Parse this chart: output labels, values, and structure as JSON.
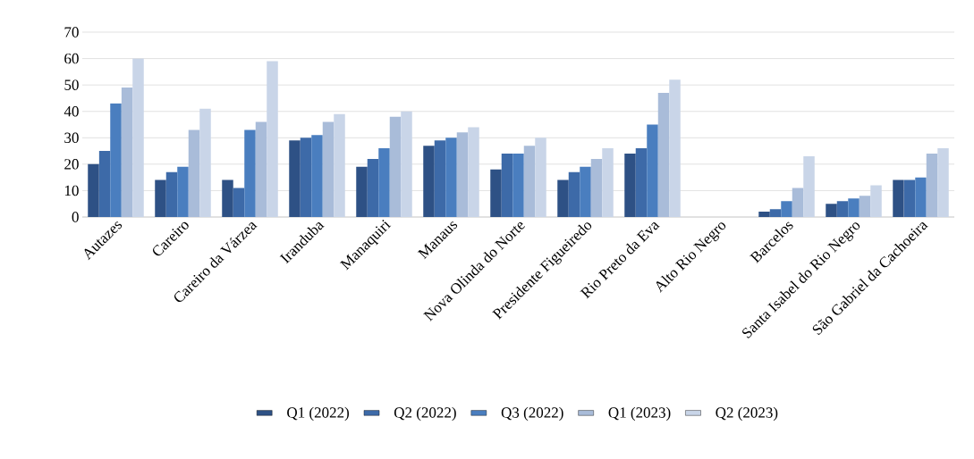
{
  "chart_data": {
    "type": "bar",
    "categories": [
      "Autazes",
      "Careiro",
      "Careiro da Várzea",
      "Iranduba",
      "Manaquiri",
      "Manaus",
      "Nova Olinda do Norte",
      "Presidente Figueiredo",
      "Rio Preto da Eva",
      "Alto Rio Negro",
      "Barcelos",
      "Santa Isabel do Rio Negro",
      "São Gabriel da Cachoeira"
    ],
    "series": [
      {
        "name": "Q1 (2022)",
        "color": "#2e5185",
        "values": [
          20,
          14,
          14,
          29,
          19,
          27,
          18,
          14,
          24,
          null,
          2,
          5,
          14
        ]
      },
      {
        "name": "Q2 (2022)",
        "color": "#3d6aa8",
        "values": [
          25,
          17,
          11,
          30,
          22,
          29,
          24,
          17,
          26,
          null,
          3,
          6,
          14
        ]
      },
      {
        "name": "Q3 (2022)",
        "color": "#4a7ebf",
        "values": [
          43,
          19,
          33,
          31,
          26,
          30,
          24,
          19,
          35,
          null,
          6,
          7,
          15
        ]
      },
      {
        "name": "Q1 (2023)",
        "color": "#a9bcd9",
        "values": [
          49,
          33,
          36,
          36,
          38,
          32,
          27,
          22,
          47,
          null,
          11,
          8,
          24
        ]
      },
      {
        "name": "Q2 (2023)",
        "color": "#c9d5e8",
        "values": [
          60,
          41,
          59,
          39,
          40,
          34,
          30,
          26,
          52,
          null,
          23,
          12,
          26
        ]
      }
    ],
    "ylim": [
      0,
      70
    ],
    "yticks": [
      0,
      10,
      20,
      30,
      40,
      50,
      60,
      70
    ],
    "grid": "y",
    "legend": "bottom"
  }
}
